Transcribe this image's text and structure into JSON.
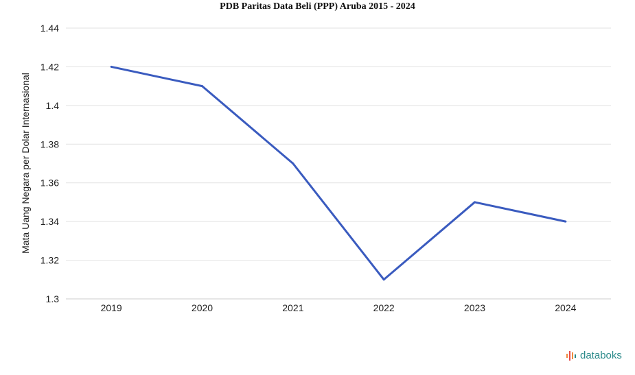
{
  "chart_data": {
    "type": "line",
    "title": "PDB Paritas Data Beli (PPP) Aruba 2015 - 2024",
    "xlabel": "",
    "ylabel": "Mata Uang Negara per Dolar Internasional",
    "categories": [
      "2019",
      "2020",
      "2021",
      "2022",
      "2023",
      "2024"
    ],
    "series": [
      {
        "values": [
          1.42,
          1.41,
          1.37,
          1.31,
          1.35,
          1.34
        ]
      }
    ],
    "yticks": [
      "1.3",
      "1.32",
      "1.34",
      "1.36",
      "1.38",
      "1.4",
      "1.42",
      "1.44"
    ],
    "ylim": [
      1.3,
      1.44
    ],
    "grid": true,
    "line_color": "#3a5bbf"
  },
  "brand": {
    "name": "databoks"
  }
}
